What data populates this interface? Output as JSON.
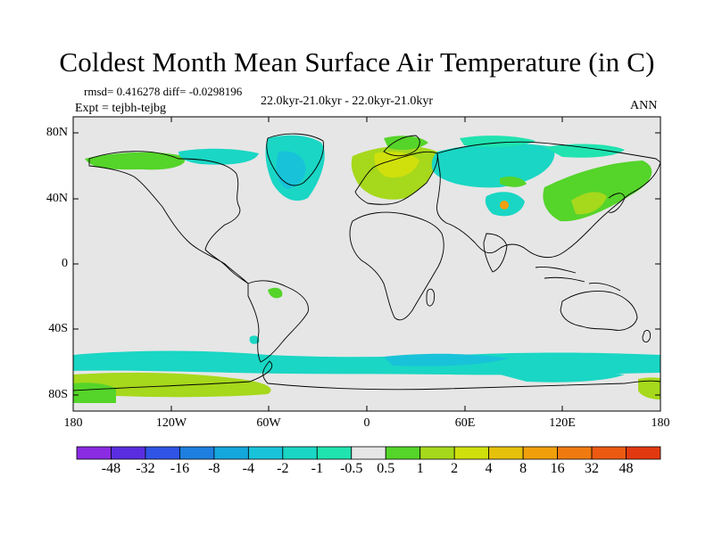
{
  "title": "Coldest Month Mean Surface Air Temperature (in C)",
  "stats": "rmsd= 0.416278 diff= -0.0298196",
  "period": "22.0kyr-21.0kyr - 22.0kyr-21.0kyr",
  "expt": "Expt = tejbh-tejbg",
  "season": "ANN",
  "lat_ticks": [
    "80N",
    "40N",
    "0",
    "40S",
    "80S"
  ],
  "lon_ticks": [
    "180",
    "120W",
    "60W",
    "0",
    "60E",
    "120E",
    "180"
  ],
  "colorbar": {
    "labels": [
      "-48",
      "-32",
      "-16",
      "-8",
      "-4",
      "-2",
      "-1",
      "-0.5",
      "0.5",
      "1",
      "2",
      "4",
      "8",
      "16",
      "32",
      "48"
    ],
    "colors": [
      "#8a2be2",
      "#5a2de0",
      "#2f54e6",
      "#1e7fe0",
      "#14a7dc",
      "#18c3d9",
      "#1ad6c4",
      "#20e3b0",
      "#e6e6e6",
      "#55d42a",
      "#a6d81c",
      "#cfe00c",
      "#e6c10c",
      "#f0a00a",
      "#f07a10",
      "#ec5a12",
      "#e23a10"
    ]
  }
}
